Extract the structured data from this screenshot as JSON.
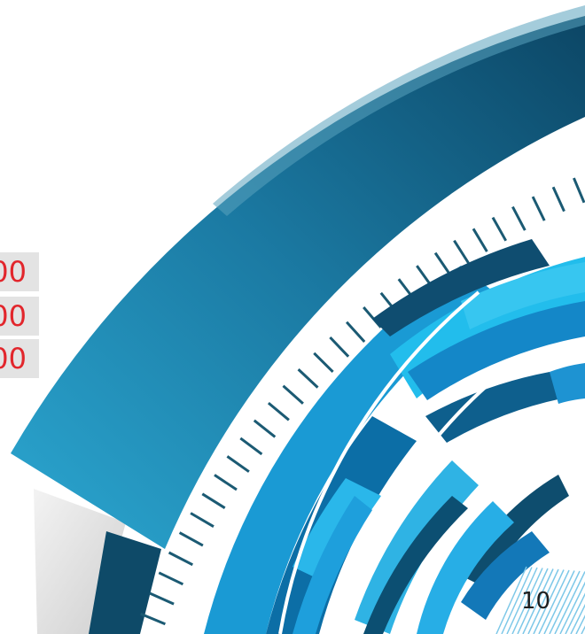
{
  "labels": [
    "00",
    "00",
    "00"
  ],
  "page_number": "10",
  "colors": {
    "label_text": "#e2262c",
    "label_bg": "#e3e3e3",
    "outer_arc_dark": "#0e4f6e",
    "outer_arc_light": "#2aa6cf",
    "ring_blue": "#1aa0dc",
    "ring_cyan": "#22c1ee",
    "ring_navy": "#0d4a6b",
    "tick_color": "#1b5a73",
    "hatch_color": "#7ec8e8"
  }
}
